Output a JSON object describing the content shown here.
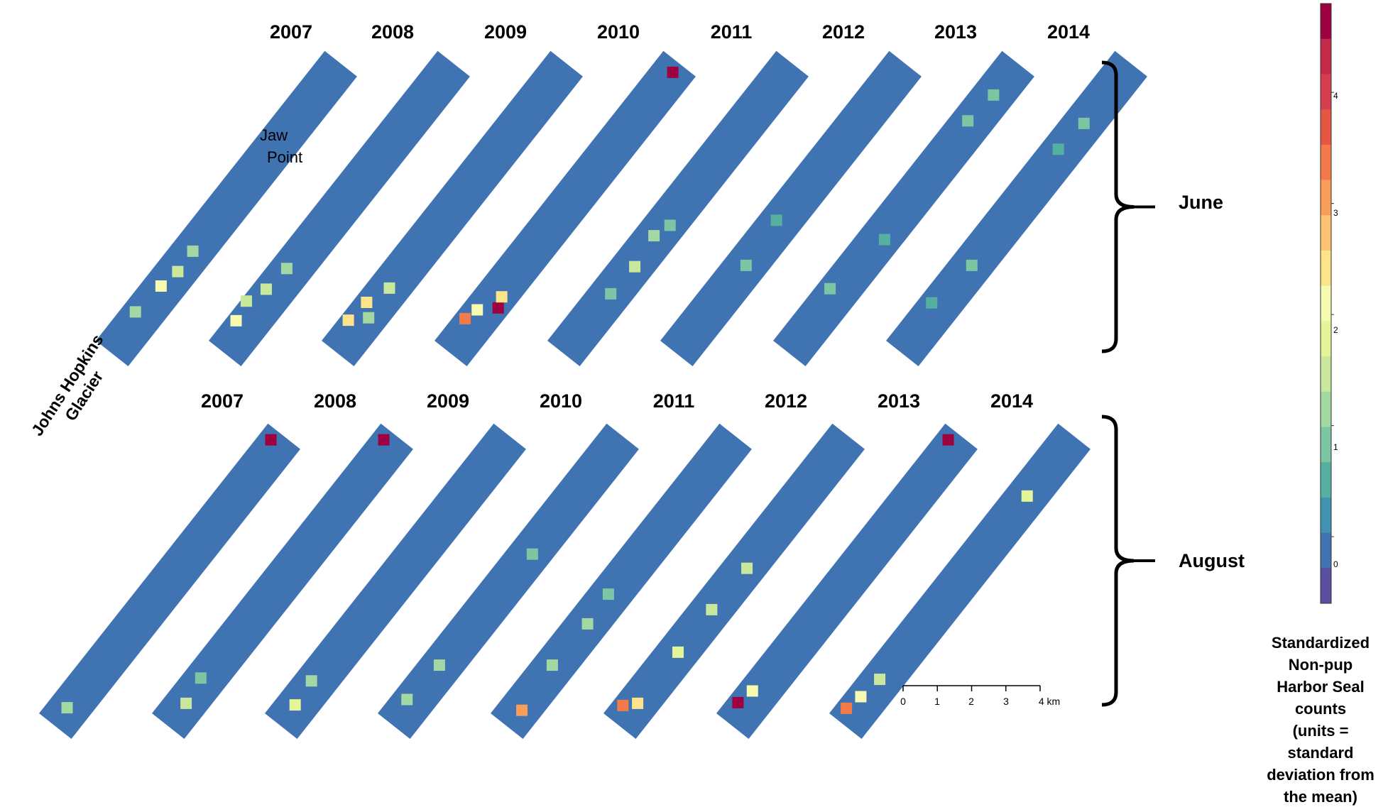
{
  "figure": {
    "row_labels": [
      "June",
      "August"
    ],
    "years": [
      "2007",
      "2008",
      "2009",
      "2010",
      "2011",
      "2012",
      "2013",
      "2014"
    ],
    "annotations": {
      "jaw_point": [
        "Jaw",
        "Point"
      ],
      "glacier": [
        "Johns Hopkins",
        "Glacier"
      ]
    }
  },
  "colorbar": {
    "title_lines": [
      "Standardized",
      "Non-pup",
      "Harbor Seal",
      "counts",
      "(units =",
      "standard",
      "deviation from",
      "the mean)"
    ],
    "tick_labels": [
      "4",
      "3",
      "2",
      "1",
      "0"
    ],
    "range": [
      -0.6,
      4.8
    ],
    "colors": [
      "#5a4f9e",
      "#4073b2",
      "#4293b2",
      "#55b09f",
      "#7cc6a4",
      "#a4d8a2",
      "#c9e89b",
      "#e6f598",
      "#f6fbb0",
      "#fde48b",
      "#fdc371",
      "#f99d59",
      "#f47a4a",
      "#e55643",
      "#d53e4f",
      "#c42b48",
      "#9e0142"
    ]
  },
  "scale_bar": {
    "labels": [
      "0",
      "1",
      "2",
      "3",
      "4 km"
    ]
  },
  "map_data": {
    "type": "small-multiple grid maps",
    "base_color": "#4073b2",
    "panels": {
      "June": {
        "2007": [
          [
            0.78,
            0.42,
            2.0
          ],
          [
            0.72,
            0.52,
            1.5
          ],
          [
            0.88,
            0.32,
            1.0
          ],
          [
            0.65,
            0.5,
            1.0
          ]
        ],
        "2008": [
          [
            0.92,
            0.22,
            2.0
          ],
          [
            0.8,
            0.32,
            1.5
          ],
          [
            0.86,
            0.12,
            1.5
          ],
          [
            0.72,
            0.4,
            1.0
          ]
        ],
        "2009": [
          [
            0.85,
            0.28,
            2.5
          ],
          [
            0.78,
            0.5,
            1.5
          ],
          [
            0.92,
            0.2,
            2.3
          ],
          [
            0.88,
            0.55,
            1.0
          ]
        ],
        "2010": [
          [
            0.91,
            0.25,
            3.5
          ],
          [
            0.83,
            0.72,
            4.8
          ],
          [
            0.8,
            0.62,
            2.3
          ],
          [
            0.87,
            0.35,
            2.0
          ],
          [
            0.02,
            0.5,
            4.5
          ]
        ],
        "2011": [
          [
            0.7,
            0.55,
            1.5
          ],
          [
            0.6,
            0.45,
            1.0
          ],
          [
            0.8,
            0.5,
            0.8
          ],
          [
            0.55,
            0.6,
            0.8
          ]
        ],
        "2012": [
          [
            0.7,
            0.5,
            0.8
          ],
          [
            0.55,
            0.4,
            0.6
          ]
        ],
        "2013": [
          [
            0.1,
            0.5,
            0.8
          ],
          [
            0.2,
            0.4,
            0.8
          ],
          [
            0.8,
            0.3,
            0.8
          ],
          [
            0.6,
            0.6,
            0.6
          ]
        ],
        "2014": [
          [
            0.2,
            0.5,
            0.8
          ],
          [
            0.3,
            0.4,
            0.6
          ],
          [
            0.7,
            0.5,
            0.8
          ],
          [
            0.85,
            0.3,
            0.6
          ]
        ]
      },
      "August": {
        "2007": [
          [
            0.95,
            0.45,
            1.2
          ],
          [
            0.02,
            0.3,
            4.5
          ]
        ],
        "2008": [
          [
            0.93,
            0.5,
            1.5
          ],
          [
            0.85,
            0.4,
            0.8
          ],
          [
            0.02,
            0.3,
            4.5
          ]
        ],
        "2009": [
          [
            0.94,
            0.45,
            1.8
          ],
          [
            0.86,
            0.4,
            1.0
          ]
        ],
        "2010": [
          [
            0.8,
            0.45,
            1.0
          ],
          [
            0.93,
            0.35,
            1.2
          ],
          [
            0.4,
            0.55,
            0.8
          ]
        ],
        "2011": [
          [
            0.8,
            0.45,
            1.2
          ],
          [
            0.65,
            0.5,
            1.0
          ],
          [
            0.55,
            0.45,
            0.8
          ],
          [
            0.95,
            0.55,
            3.0
          ]
        ],
        "2012": [
          [
            0.75,
            0.5,
            1.8
          ],
          [
            0.6,
            0.5,
            1.6
          ],
          [
            0.45,
            0.55,
            1.5
          ],
          [
            0.93,
            0.5,
            2.3
          ],
          [
            0.96,
            0.25,
            3.5
          ]
        ],
        "2013": [
          [
            0.95,
            0.25,
            4.8
          ],
          [
            0.9,
            0.35,
            2.0
          ],
          [
            0.02,
            0.3,
            4.5
          ]
        ],
        "2014": [
          [
            0.92,
            0.35,
            2.0
          ],
          [
            0.85,
            0.45,
            1.5
          ],
          [
            0.97,
            0.25,
            3.5
          ],
          [
            0.2,
            0.5,
            1.8
          ]
        ]
      }
    }
  }
}
